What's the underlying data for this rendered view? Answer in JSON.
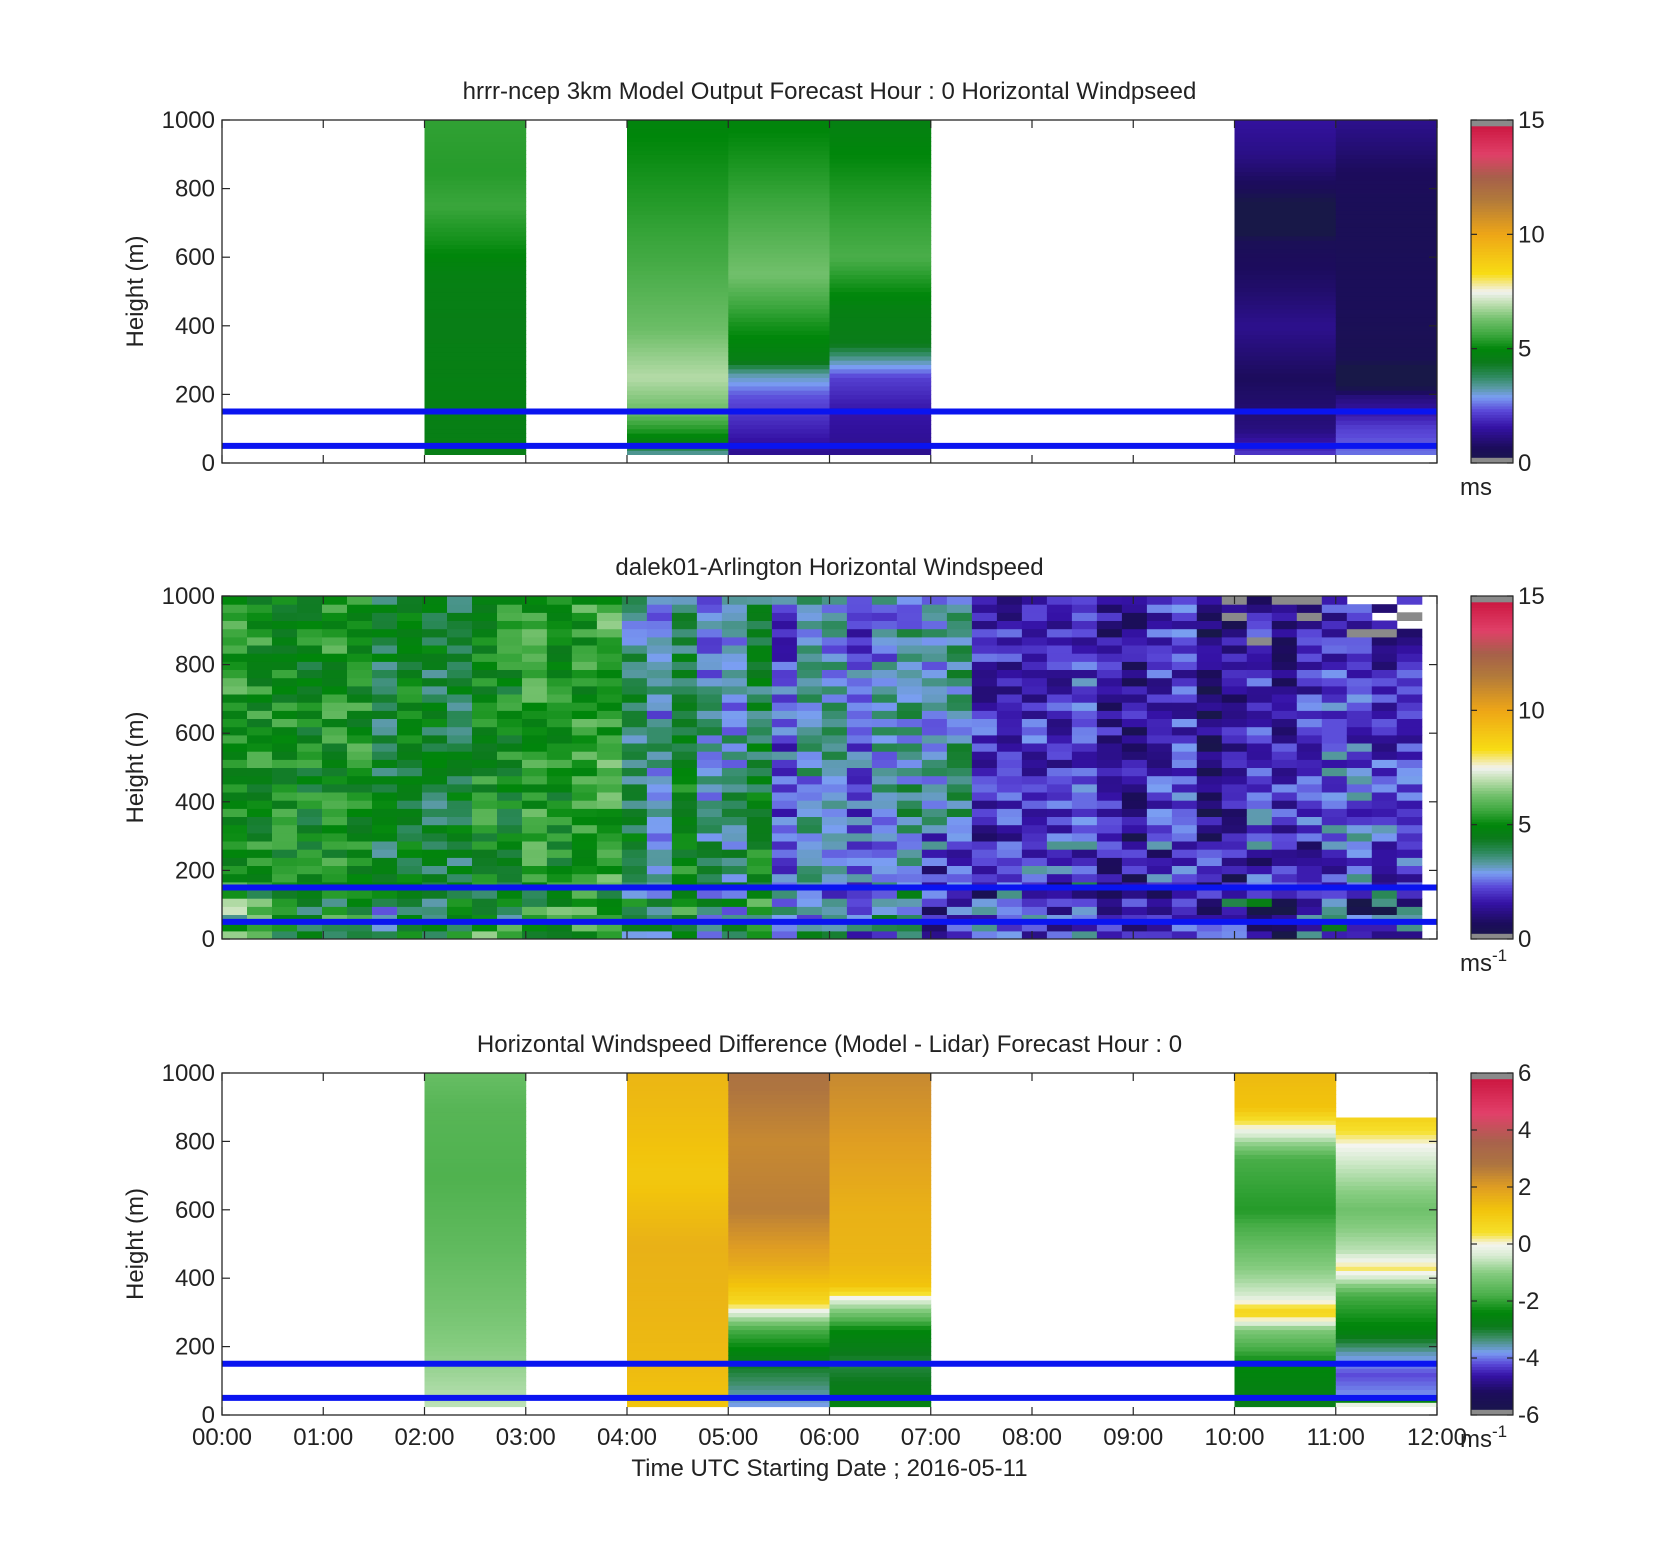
{
  "chart_data": [
    {
      "type": "heatmap",
      "title": "hrrr-ncep 3km Model Output   Forecast Hour : 0 Horizontal Windpseed",
      "ylabel": "Height (m)",
      "xlabel": "",
      "ylim": [
        0,
        1000
      ],
      "yticks": [
        "0",
        "200",
        "400",
        "600",
        "800",
        "1000"
      ],
      "xlim_hours": [
        0,
        12
      ],
      "x_tick_labels_visible": false,
      "colorbar": {
        "min": 0,
        "max": 15,
        "ticks": [
          "0",
          "5",
          "10",
          "15"
        ],
        "unit": "ms",
        "unit_sup": "",
        "scheme": "speed"
      },
      "reference_lines_m": [
        50,
        150
      ],
      "columns": [
        {
          "start_h": 2,
          "end_h": 3,
          "bottom_m": 25,
          "top_m": 1000,
          "profile": [
            [
              25,
              4.6
            ],
            [
              200,
              4.7
            ],
            [
              400,
              4.6
            ],
            [
              550,
              4.7
            ],
            [
              650,
              5.2
            ],
            [
              750,
              5.6
            ],
            [
              850,
              5.4
            ],
            [
              1000,
              5.5
            ]
          ]
        },
        {
          "start_h": 4,
          "end_h": 5,
          "bottom_m": 25,
          "top_m": 1000,
          "profile": [
            [
              25,
              3.2
            ],
            [
              60,
              4.6
            ],
            [
              90,
              5.2
            ],
            [
              150,
              6.2
            ],
            [
              250,
              6.9
            ],
            [
              400,
              6.2
            ],
            [
              600,
              5.7
            ],
            [
              800,
              5.3
            ],
            [
              1000,
              4.9
            ]
          ]
        },
        {
          "start_h": 5,
          "end_h": 6,
          "bottom_m": 25,
          "top_m": 1000,
          "profile": [
            [
              25,
              1.3
            ],
            [
              100,
              1.8
            ],
            [
              200,
              2.4
            ],
            [
              260,
              3.3
            ],
            [
              300,
              4.6
            ],
            [
              400,
              5.2
            ],
            [
              550,
              6.3
            ],
            [
              800,
              5.5
            ],
            [
              1000,
              4.9
            ]
          ]
        },
        {
          "start_h": 6,
          "end_h": 7,
          "bottom_m": 25,
          "top_m": 1000,
          "profile": [
            [
              25,
              1.3
            ],
            [
              150,
              1.6
            ],
            [
              250,
              2.2
            ],
            [
              300,
              3.3
            ],
            [
              350,
              4.5
            ],
            [
              450,
              4.7
            ],
            [
              600,
              5.8
            ],
            [
              800,
              5.3
            ],
            [
              1000,
              4.7
            ]
          ]
        },
        {
          "start_h": 10,
          "end_h": 11,
          "bottom_m": 25,
          "top_m": 1000,
          "profile": [
            [
              25,
              2.1
            ],
            [
              100,
              1.1
            ],
            [
              250,
              0.7
            ],
            [
              400,
              1.3
            ],
            [
              500,
              0.9
            ],
            [
              650,
              0.5
            ],
            [
              700,
              -1
            ],
            [
              800,
              0.6
            ],
            [
              900,
              1.2
            ],
            [
              1000,
              1.5
            ]
          ]
        },
        {
          "start_h": 11,
          "end_h": 12,
          "bottom_m": 25,
          "top_m": 1000,
          "profile": [
            [
              25,
              2.6
            ],
            [
              100,
              2.2
            ],
            [
              200,
              1.0
            ],
            [
              250,
              -1
            ],
            [
              300,
              0.4
            ],
            [
              500,
              0.6
            ],
            [
              700,
              0.5
            ],
            [
              850,
              0.7
            ],
            [
              1000,
              1.3
            ]
          ]
        }
      ]
    },
    {
      "type": "heatmap",
      "title": "dalek01-Arlington  Horizontal Windspeed",
      "ylabel": "Height (m)",
      "xlabel": "",
      "ylim": [
        0,
        1000
      ],
      "yticks": [
        "0",
        "200",
        "400",
        "600",
        "800",
        "1000"
      ],
      "xlim_hours": [
        0,
        12
      ],
      "x_tick_labels_visible": false,
      "colorbar": {
        "min": 0,
        "max": 15,
        "ticks": [
          "0",
          "5",
          "10",
          "15"
        ],
        "unit": "ms",
        "unit_sup": "-1",
        "scheme": "speed"
      },
      "reference_lines_m": [
        50,
        150
      ],
      "data_extent_hours": [
        0,
        11.85
      ],
      "time_columns": 48,
      "height_rows": 42,
      "speed_regimes": [
        {
          "from_h": 0,
          "to_h": 4,
          "low_m": 4.8,
          "high_m": 5.0
        },
        {
          "from_h": 4,
          "to_h": 5.5,
          "low_m": 4.4,
          "high_m": 3.4
        },
        {
          "from_h": 5.5,
          "to_h": 7.5,
          "low_m": 3.0,
          "high_m": 2.8
        },
        {
          "from_h": 7.5,
          "to_h": 10,
          "low_m": 1.6,
          "high_m": 1.4
        },
        {
          "from_h": 10,
          "to_h": 12,
          "low_m": 2.6,
          "high_m": 1.2
        }
      ]
    },
    {
      "type": "heatmap",
      "title": "Horizontal Windspeed Difference (Model - Lidar) Forecast Hour : 0",
      "ylabel": "Height (m)",
      "xlabel": "Time UTC  Starting Date ; 2016-05-11",
      "ylim": [
        0,
        1000
      ],
      "yticks": [
        "0",
        "200",
        "400",
        "600",
        "800",
        "1000"
      ],
      "xlim_hours": [
        0,
        12
      ],
      "x_tick_labels_visible": true,
      "xticks": [
        "00:00",
        "01:00",
        "02:00",
        "03:00",
        "04:00",
        "05:00",
        "06:00",
        "07:00",
        "08:00",
        "09:00",
        "10:00",
        "11:00",
        "12:00"
      ],
      "colorbar": {
        "min": -6,
        "max": 6,
        "ticks": [
          "-6",
          "-4",
          "-2",
          "0",
          "2",
          "4",
          "6"
        ],
        "unit": "ms",
        "unit_sup": "-1",
        "scheme": "diff"
      },
      "reference_lines_m": [
        50,
        150
      ],
      "columns": [
        {
          "start_h": 2,
          "end_h": 3,
          "bottom_m": 25,
          "top_m": 1000,
          "profile": [
            [
              25,
              -0.6
            ],
            [
              150,
              -0.9
            ],
            [
              300,
              -1.2
            ],
            [
              500,
              -1.5
            ],
            [
              700,
              -1.7
            ],
            [
              900,
              -1.6
            ],
            [
              1000,
              -1.4
            ]
          ]
        },
        {
          "start_h": 4,
          "end_h": 5,
          "bottom_m": 25,
          "top_m": 1000,
          "profile": [
            [
              25,
              1.2
            ],
            [
              150,
              1.4
            ],
            [
              300,
              1.5
            ],
            [
              500,
              1.6
            ],
            [
              700,
              1.1
            ],
            [
              900,
              1.4
            ],
            [
              1000,
              1.5
            ]
          ]
        },
        {
          "start_h": 5,
          "end_h": 6,
          "bottom_m": 25,
          "top_m": 1000,
          "profile": [
            [
              25,
              -3.8
            ],
            [
              80,
              -3.4
            ],
            [
              150,
              -2.9
            ],
            [
              250,
              -1.8
            ],
            [
              300,
              -0.3
            ],
            [
              330,
              0.6
            ],
            [
              380,
              1.2
            ],
            [
              450,
              1.8
            ],
            [
              600,
              2.6
            ],
            [
              800,
              2.4
            ],
            [
              1000,
              2.9
            ]
          ]
        },
        {
          "start_h": 6,
          "end_h": 7,
          "bottom_m": 25,
          "top_m": 1000,
          "profile": [
            [
              25,
              -2.6
            ],
            [
              150,
              -3.1
            ],
            [
              250,
              -2.4
            ],
            [
              330,
              -0.5
            ],
            [
              380,
              1.2
            ],
            [
              450,
              1.5
            ],
            [
              600,
              1.6
            ],
            [
              800,
              2.0
            ],
            [
              1000,
              2.4
            ]
          ]
        },
        {
          "start_h": 10,
          "end_h": 11,
          "bottom_m": 25,
          "top_m": 1000,
          "profile": [
            [
              25,
              -2.8
            ],
            [
              150,
              -2.4
            ],
            [
              250,
              -1.1
            ],
            [
              300,
              0.8
            ],
            [
              350,
              -0.4
            ],
            [
              400,
              -0.8
            ],
            [
              600,
              -2.1
            ],
            [
              750,
              -1.8
            ],
            [
              830,
              -0.2
            ],
            [
              900,
              1.2
            ],
            [
              1000,
              1.4
            ]
          ]
        },
        {
          "start_h": 11,
          "end_h": 12,
          "bottom_m": 25,
          "top_m": 870,
          "profile": [
            [
              25,
              1.0
            ],
            [
              50,
              -3.8
            ],
            [
              120,
              -4.2
            ],
            [
              180,
              -3.6
            ],
            [
              250,
              -2.5
            ],
            [
              350,
              -1.8
            ],
            [
              430,
              0.3
            ],
            [
              480,
              -0.6
            ],
            [
              600,
              -1.3
            ],
            [
              750,
              -0.4
            ],
            [
              870,
              0.8
            ]
          ]
        }
      ]
    }
  ]
}
